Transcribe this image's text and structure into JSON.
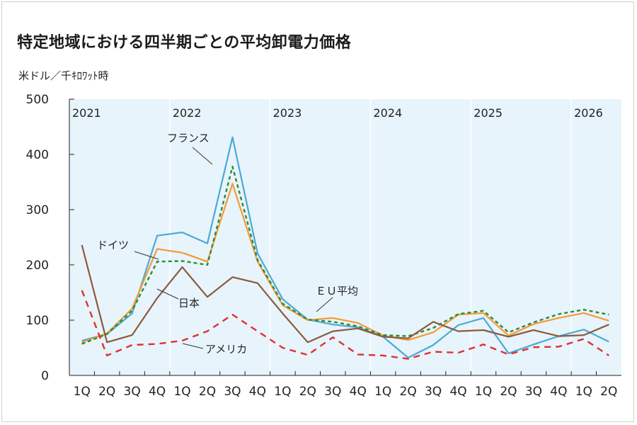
{
  "title": "特定地域における四半期ごとの平均卸電力価格",
  "unit": "米ドル／千ｷﾛﾜｯﾄ時",
  "chart_data": {
    "type": "line",
    "ylim": [
      0,
      500
    ],
    "yticks": [
      0,
      100,
      200,
      300,
      400,
      500
    ],
    "x": [
      "1Q",
      "2Q",
      "3Q",
      "4Q",
      "1Q",
      "2Q",
      "3Q",
      "4Q",
      "1Q",
      "2Q",
      "3Q",
      "4Q",
      "1Q",
      "2Q",
      "3Q",
      "4Q",
      "1Q",
      "2Q",
      "3Q",
      "4Q",
      "1Q",
      "2Q"
    ],
    "years": [
      "2021",
      "2022",
      "2023",
      "2024",
      "2025",
      "2026"
    ],
    "grid": true,
    "series": [
      {
        "name": "フランス",
        "color": "#4ba9d6",
        "dash": "solid",
        "values": [
          63,
          75,
          112,
          253,
          259,
          239,
          431,
          221,
          138,
          101,
          92,
          87,
          70,
          32,
          55,
          91,
          104,
          40,
          56,
          71,
          83,
          61
        ]
      },
      {
        "name": "ドイツ",
        "color": "#f59a34",
        "dash": "solid",
        "values": [
          60,
          76,
          121,
          229,
          222,
          206,
          347,
          206,
          127,
          100,
          104,
          95,
          72,
          64,
          78,
          110,
          113,
          72,
          93,
          104,
          113,
          99
        ]
      },
      {
        "name": "ＥＵ平均",
        "color": "#2e8b3a",
        "dash": "dotted",
        "values": [
          57,
          75,
          117,
          206,
          207,
          200,
          378,
          209,
          130,
          101,
          97,
          89,
          73,
          71,
          86,
          111,
          117,
          78,
          96,
          111,
          119,
          110
        ]
      },
      {
        "name": "日本",
        "color": "#8b5a3c",
        "dash": "solid",
        "values": [
          236,
          60,
          73,
          140,
          196,
          142,
          178,
          167,
          112,
          60,
          80,
          85,
          70,
          67,
          97,
          80,
          82,
          70,
          82,
          71,
          73,
          92
        ]
      },
      {
        "name": "アメリカ",
        "color": "#e03030",
        "dash": "dashed",
        "values": [
          154,
          36,
          55,
          57,
          63,
          80,
          110,
          80,
          50,
          37,
          69,
          38,
          36,
          30,
          43,
          41,
          56,
          38,
          51,
          52,
          66,
          36
        ]
      }
    ]
  }
}
